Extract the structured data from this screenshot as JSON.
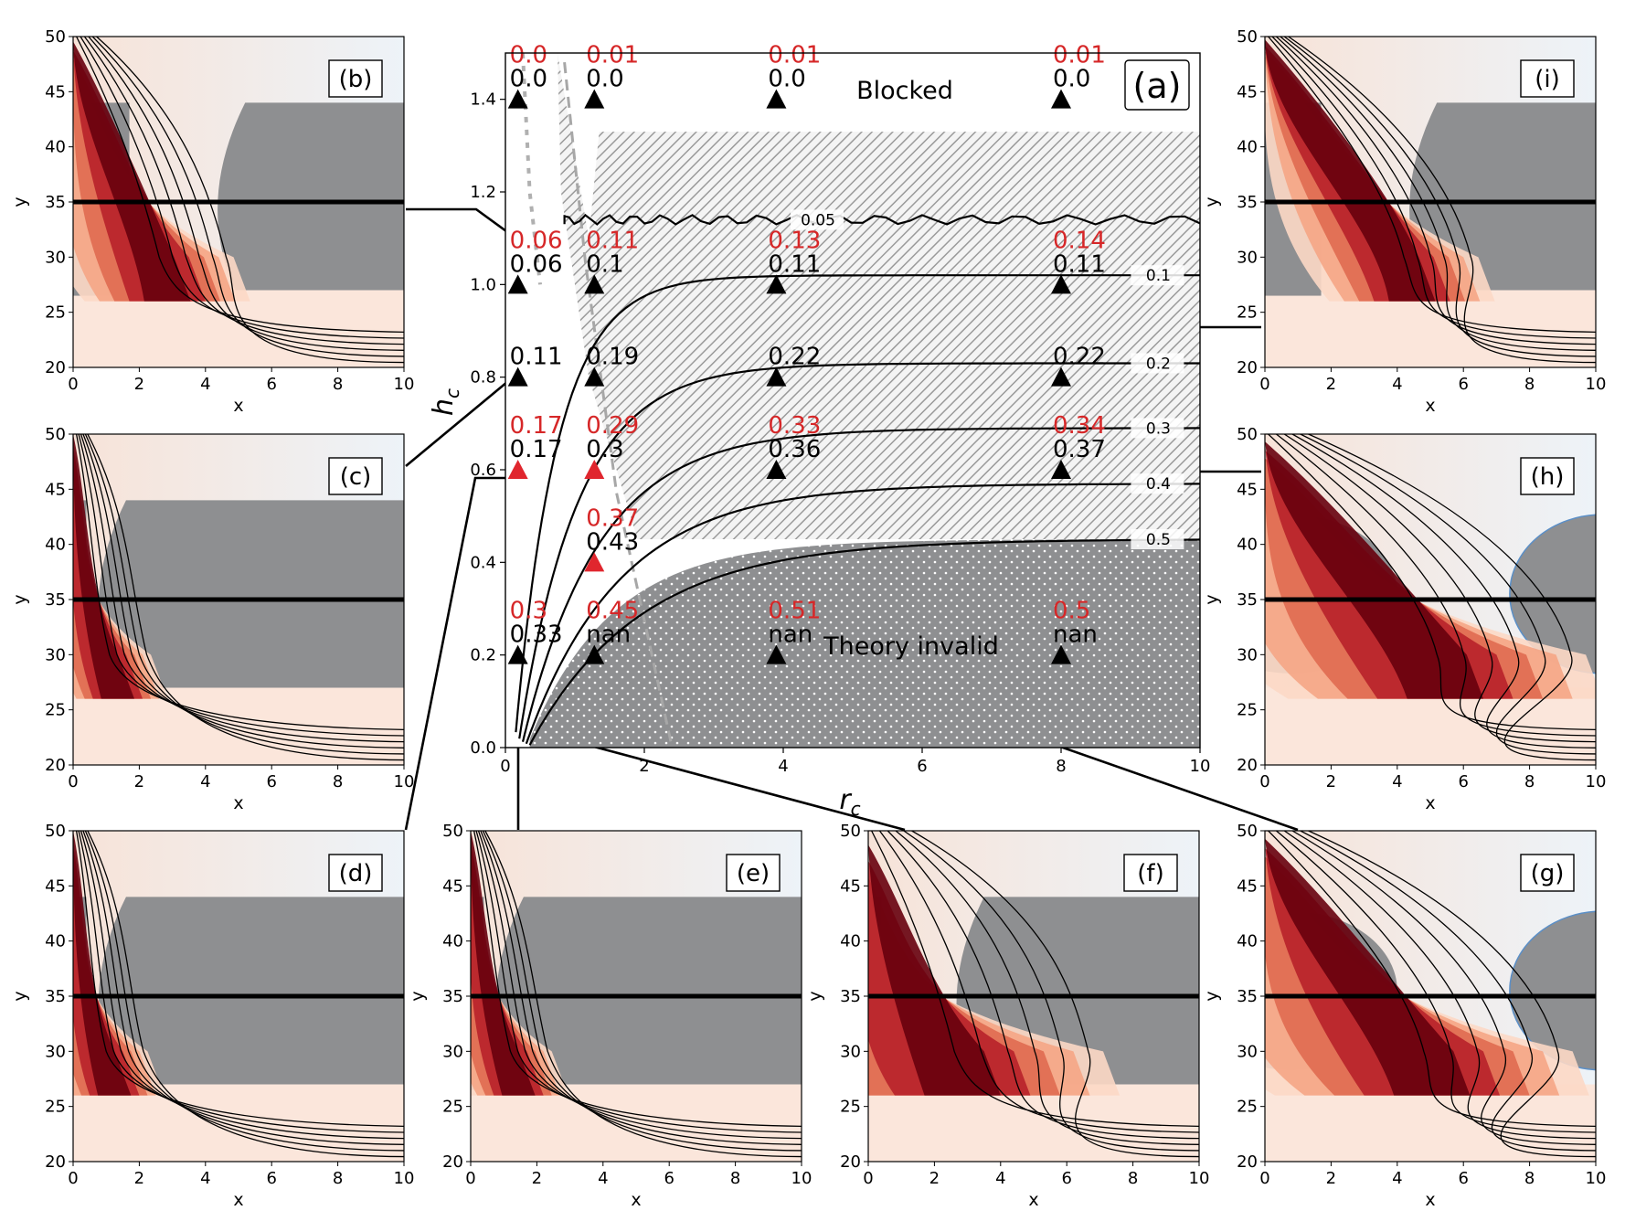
{
  "figure": {
    "center_label": "(a)",
    "blocked_label": "Blocked",
    "invalid_label": "Theory invalid",
    "xlabel": "r",
    "xlabel_sub": "c",
    "ylabel": "h",
    "ylabel_sub": "c"
  },
  "chart_data": [
    {
      "panel": "(a)",
      "type": "scatter",
      "xlabel": "r_c",
      "ylabel": "h_c",
      "xlim": [
        0,
        10
      ],
      "ylim": [
        0,
        1.5
      ],
      "x_ticks": [
        "0",
        "2",
        "4",
        "6",
        "8",
        "10"
      ],
      "y_ticks": [
        "0.0",
        "0.2",
        "0.4",
        "0.6",
        "0.8",
        "1.0",
        "1.2",
        "1.4"
      ],
      "x_tick_values": [
        0,
        2,
        4,
        6,
        8,
        10
      ],
      "y_tick_values": [
        0,
        0.2,
        0.4,
        0.6,
        0.8,
        1.0,
        1.2,
        1.4
      ],
      "contour_levels": [
        "0.05",
        "0.1",
        "0.2",
        "0.3",
        "0.4",
        "0.5"
      ],
      "contour_asymptotes": [
        1.14,
        1.02,
        0.83,
        0.69,
        0.57,
        0.45
      ],
      "markers": [
        {
          "x": 0.18,
          "y": 1.4,
          "color": "black",
          "red_label": "0.0",
          "black_label": "0.0"
        },
        {
          "x": 1.28,
          "y": 1.4,
          "color": "black",
          "red_label": "0.01",
          "black_label": "0.0"
        },
        {
          "x": 3.9,
          "y": 1.4,
          "color": "black",
          "red_label": "0.01",
          "black_label": "0.0"
        },
        {
          "x": 8.0,
          "y": 1.4,
          "color": "black",
          "red_label": "0.01",
          "black_label": "0.0"
        },
        {
          "x": 0.18,
          "y": 1.0,
          "color": "black",
          "red_label": "0.06",
          "black_label": "0.06"
        },
        {
          "x": 1.28,
          "y": 1.0,
          "color": "black",
          "red_label": "0.11",
          "black_label": "0.1"
        },
        {
          "x": 3.9,
          "y": 1.0,
          "color": "black",
          "red_label": "0.13",
          "black_label": "0.11"
        },
        {
          "x": 8.0,
          "y": 1.0,
          "color": "black",
          "red_label": "0.14",
          "black_label": "0.11"
        },
        {
          "x": 0.18,
          "y": 0.8,
          "color": "black",
          "red_label": "",
          "black_label": "0.11"
        },
        {
          "x": 1.28,
          "y": 0.8,
          "color": "black",
          "red_label": "",
          "black_label": "0.19"
        },
        {
          "x": 3.9,
          "y": 0.8,
          "color": "black",
          "red_label": "",
          "black_label": "0.22"
        },
        {
          "x": 8.0,
          "y": 0.8,
          "color": "black",
          "red_label": "",
          "black_label": "0.22"
        },
        {
          "x": 0.18,
          "y": 0.6,
          "color": "red",
          "red_label": "0.17",
          "black_label": "0.17"
        },
        {
          "x": 1.28,
          "y": 0.6,
          "color": "red",
          "red_label": "0.29",
          "black_label": "0.3"
        },
        {
          "x": 3.9,
          "y": 0.6,
          "color": "black",
          "red_label": "0.33",
          "black_label": "0.36"
        },
        {
          "x": 8.0,
          "y": 0.6,
          "color": "black",
          "red_label": "0.34",
          "black_label": "0.37"
        },
        {
          "x": 1.28,
          "y": 0.4,
          "color": "red",
          "red_label": "0.37",
          "black_label": "0.43"
        },
        {
          "x": 0.18,
          "y": 0.2,
          "color": "black",
          "red_label": "0.3",
          "black_label": "0.33"
        },
        {
          "x": 1.28,
          "y": 0.2,
          "color": "black",
          "red_label": "0.45",
          "black_label": "nan"
        },
        {
          "x": 3.9,
          "y": 0.2,
          "color": "black",
          "red_label": "0.51",
          "black_label": "nan"
        },
        {
          "x": 8.0,
          "y": 0.2,
          "color": "black",
          "red_label": "0.5",
          "black_label": "nan"
        }
      ]
    },
    {
      "panels": [
        "(b)",
        "(c)",
        "(d)",
        "(e)",
        "(f)",
        "(g)",
        "(h)",
        "(i)"
      ],
      "type": "heatmap",
      "xlabel": "x",
      "ylabel": "y",
      "xlim": [
        0,
        10
      ],
      "ylim": [
        20,
        50
      ],
      "x_ticks": [
        "0",
        "2",
        "4",
        "6",
        "8",
        "10"
      ],
      "y_ticks": [
        "20",
        "25",
        "30",
        "35",
        "40",
        "45",
        "50"
      ],
      "reference_line_y": 35
    }
  ],
  "colors": {
    "obstacle": "#8e8f91",
    "red_label": "#d62728",
    "red_marker": "#e0262e",
    "background_light_blue": "#e3edf5",
    "plume_dark": "#67000d"
  }
}
